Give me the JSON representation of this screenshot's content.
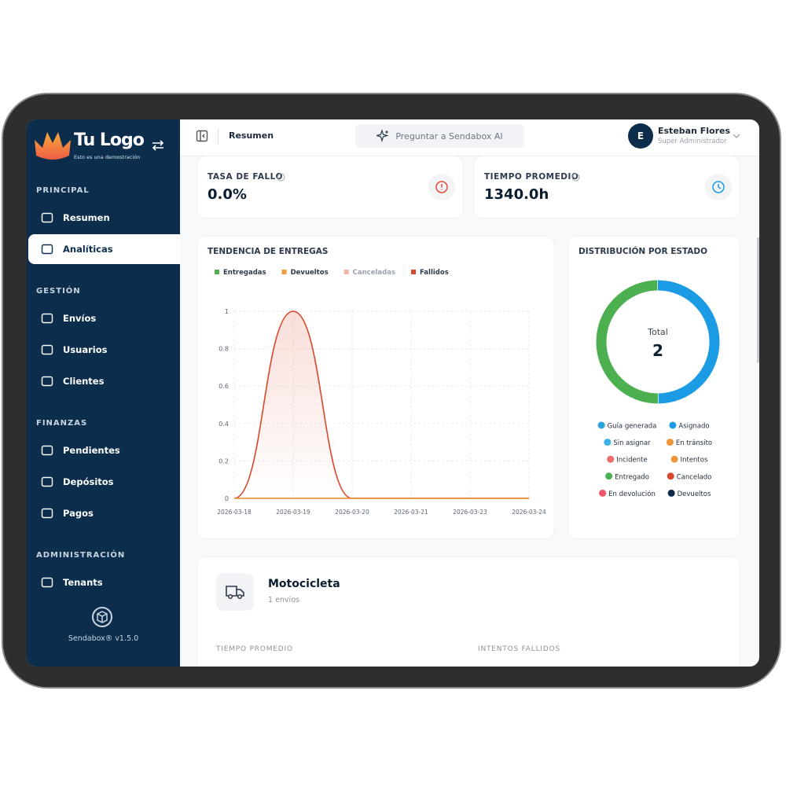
{
  "sidebar": {
    "logo": "Tu Logo",
    "tagline": "Esto es una demostración",
    "sections": [
      {
        "title": "PRINCIPAL",
        "items": [
          "Resumen",
          "Analíticas"
        ]
      },
      {
        "title": "GESTIÓN",
        "items": [
          "Envíos",
          "Usuarios",
          "Clientes"
        ]
      },
      {
        "title": "FINANZAS",
        "items": [
          "Pendientes",
          "Depósitos",
          "Pagos"
        ]
      },
      {
        "title": "ADMINISTRACIÓN",
        "items": [
          "Tenants"
        ]
      }
    ],
    "version": "Sendabox® v1.5.0"
  },
  "topbar": {
    "page": "Resumen",
    "ask": "Preguntar a Sendabox AI",
    "user": {
      "initial": "E",
      "name": "Esteban Flores",
      "role": "Super Administrador"
    }
  },
  "stats": [
    {
      "label": "TASA DE FALLO",
      "value": "0.0%"
    },
    {
      "label": "TIEMPO PROMEDIO",
      "value": "1340.0h"
    }
  ],
  "chart_data": [
    {
      "type": "line",
      "title": "TENDENCIA DE ENTREGAS",
      "categories": [
        "2026-03-18",
        "2026-03-19",
        "2026-03-20",
        "2026-03-21",
        "2026-03-23",
        "2026-03-24"
      ],
      "series": [
        {
          "name": "Entregadas",
          "color": "#4caf50",
          "values": [
            0,
            0,
            0,
            0,
            0,
            0
          ]
        },
        {
          "name": "Devueltos",
          "color": "#f39a3d",
          "values": [
            0,
            0,
            0,
            0,
            0,
            0
          ]
        },
        {
          "name": "Canceladas",
          "color": "#f0b3a6",
          "values": [
            0,
            0,
            0,
            0,
            0,
            0
          ]
        },
        {
          "name": "Fallidos",
          "color": "#d9472b",
          "values": [
            0,
            1,
            0,
            0,
            0,
            0
          ]
        }
      ],
      "ylim": [
        0,
        1
      ],
      "yticks": [
        0,
        0.2,
        0.4,
        0.6,
        0.8,
        1
      ],
      "grid": true
    },
    {
      "type": "donut",
      "title": "DISTRIBUCIÓN POR ESTADO",
      "center_label": "Total",
      "total": 2,
      "categories": [
        "Guía generada",
        "Asignado",
        "Sin asignar",
        "En tránsito",
        "Incidente",
        "Intentos",
        "Entregado",
        "Cancelado",
        "En devolución",
        "Devueltos"
      ],
      "values": [
        0,
        1,
        0,
        0,
        0,
        0,
        1,
        0,
        0,
        0
      ],
      "colors": [
        "#29a3df",
        "#1a9be3",
        "#38b2e8",
        "#f0963a",
        "#ef6a6a",
        "#f0963a",
        "#4caf50",
        "#d9472b",
        "#ef5566",
        "#0d2b4a"
      ]
    }
  ],
  "vehicle": {
    "name": "Motocicleta",
    "count": "1 envíos",
    "fields": [
      "TIEMPO PROMEDIO",
      "INTENTOS FALLIDOS"
    ]
  }
}
